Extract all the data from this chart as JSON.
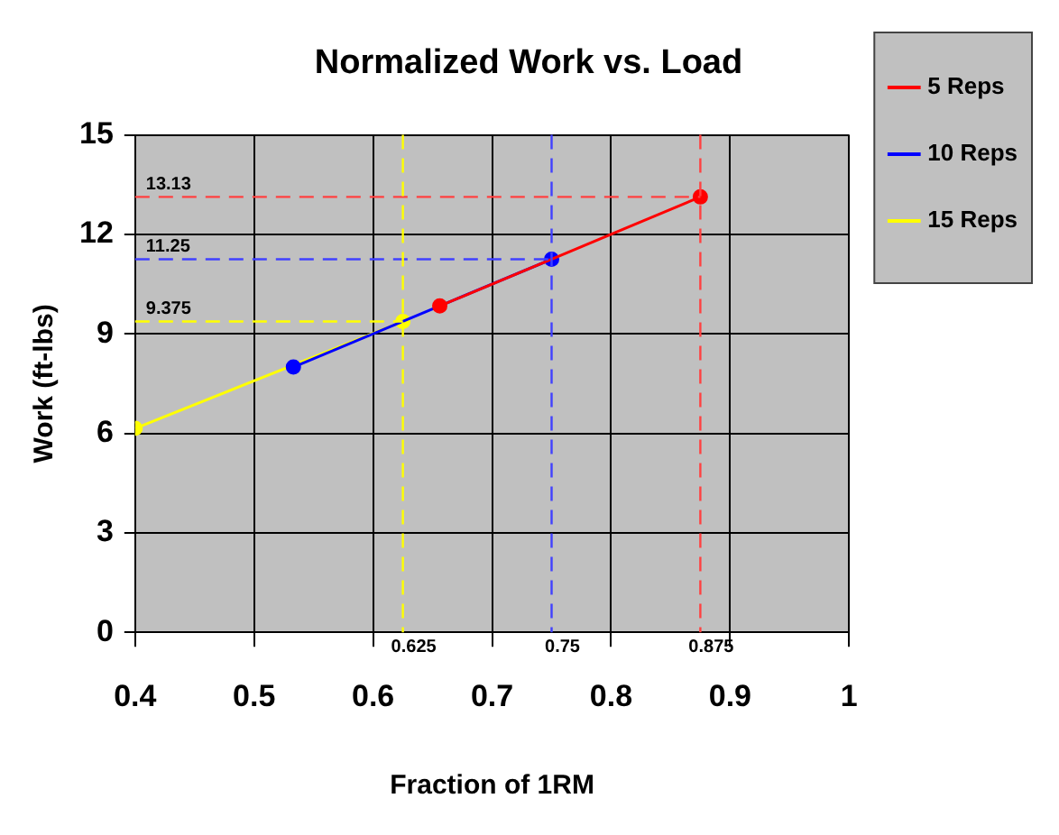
{
  "chart_data": {
    "type": "line",
    "title": "Normalized Work vs. Load",
    "xlabel": "Fraction of 1RM",
    "ylabel": "Work (ft-lbs)",
    "series": [
      {
        "name": "5 Reps",
        "color": "#ff0000",
        "x": [
          0.656,
          0.875
        ],
        "values": [
          9.84,
          13.13
        ]
      },
      {
        "name": "10 Reps",
        "color": "#0000ff",
        "x": [
          0.533,
          0.75
        ],
        "values": [
          8.0,
          11.25
        ]
      },
      {
        "name": "15 Reps",
        "color": "#ffff00",
        "x": [
          0.4,
          0.625
        ],
        "values": [
          6.15,
          9.375
        ]
      }
    ],
    "xlim": [
      0.4,
      1
    ],
    "xticks": [
      0.4,
      0.5,
      0.6,
      0.7,
      0.8,
      0.9,
      1
    ],
    "ylim": [
      0,
      15
    ],
    "yticks": [
      0,
      3,
      6,
      9,
      12,
      15
    ],
    "ref_lines": [
      {
        "axis": "y",
        "value": 13.13,
        "label": "13.13",
        "color": "#ff4040",
        "line_style": "dashed"
      },
      {
        "axis": "y",
        "value": 11.25,
        "label": "11.25",
        "color": "#4040ff",
        "line_style": "dashed"
      },
      {
        "axis": "y",
        "value": 9.375,
        "label": "9.375",
        "color": "#ffff00",
        "line_style": "dashed"
      },
      {
        "axis": "x",
        "value": 0.625,
        "label": "0.625",
        "color": "#ffff00",
        "line_style": "dashed"
      },
      {
        "axis": "x",
        "value": 0.75,
        "label": "0.75",
        "color": "#4040ff",
        "line_style": "dashed"
      },
      {
        "axis": "x",
        "value": 0.875,
        "label": "0.875",
        "color": "#ff4040",
        "line_style": "dashed"
      }
    ],
    "grid": true,
    "legend": "right",
    "marker": "circle",
    "line_style": "solid"
  }
}
